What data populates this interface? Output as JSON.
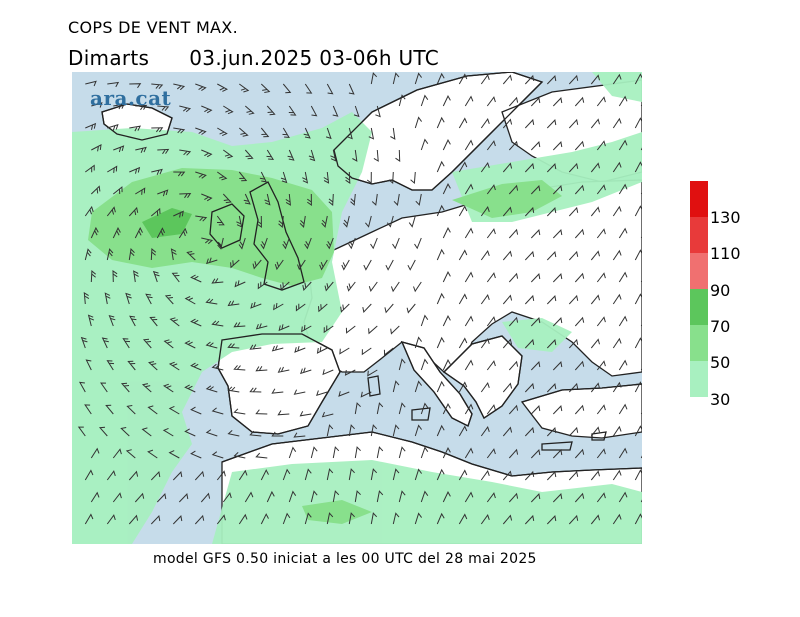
{
  "header": {
    "title": "COPS DE VENT MAX.",
    "day": "Dimarts",
    "datetime": "03.jun.2025 03-06h UTC"
  },
  "logo": {
    "text": "ara.cat"
  },
  "legend": {
    "labels": [
      "30",
      "50",
      "70",
      "90",
      "110",
      "130"
    ],
    "colors": [
      "#a8f0c0",
      "#88e08c",
      "#5cc65c",
      "#f07070",
      "#e83a3a",
      "#e01010"
    ],
    "land_color": "#ffffff",
    "sea_color": "#c6dcea"
  },
  "footer": {
    "text": "model GFS 0.50 iniciat a les 00 UTC del 28 mai 2025"
  }
}
